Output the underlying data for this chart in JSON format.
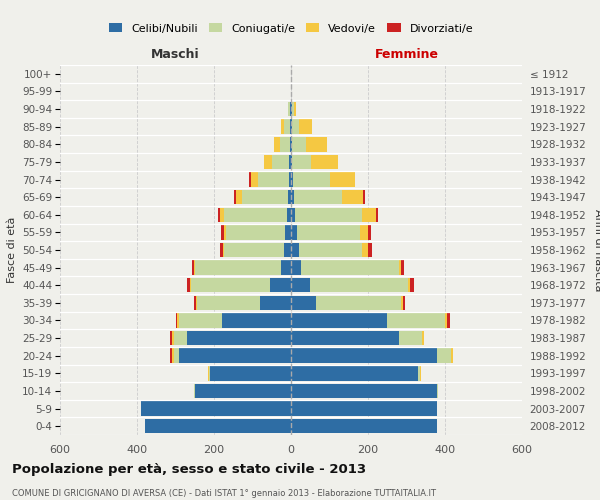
{
  "age_groups": [
    "0-4",
    "5-9",
    "10-14",
    "15-19",
    "20-24",
    "25-29",
    "30-34",
    "35-39",
    "40-44",
    "45-49",
    "50-54",
    "55-59",
    "60-64",
    "65-69",
    "70-74",
    "75-79",
    "80-84",
    "85-89",
    "90-94",
    "95-99",
    "100+"
  ],
  "birth_years": [
    "2008-2012",
    "2003-2007",
    "1998-2002",
    "1993-1997",
    "1988-1992",
    "1983-1987",
    "1978-1982",
    "1973-1977",
    "1968-1972",
    "1963-1967",
    "1958-1962",
    "1953-1957",
    "1948-1952",
    "1943-1947",
    "1938-1942",
    "1933-1937",
    "1928-1932",
    "1923-1927",
    "1918-1922",
    "1913-1917",
    "≤ 1912"
  ],
  "males": {
    "celibi": [
      380,
      390,
      250,
      210,
      290,
      270,
      180,
      80,
      55,
      25,
      18,
      15,
      10,
      8,
      5,
      4,
      3,
      2,
      2,
      0,
      0
    ],
    "coniugati": [
      0,
      0,
      2,
      4,
      15,
      35,
      110,
      165,
      205,
      225,
      155,
      155,
      165,
      120,
      80,
      45,
      25,
      15,
      5,
      0,
      0
    ],
    "vedovi": [
      0,
      0,
      0,
      2,
      5,
      5,
      5,
      2,
      2,
      2,
      3,
      5,
      10,
      15,
      20,
      20,
      15,
      8,
      2,
      0,
      0
    ],
    "divorziati": [
      0,
      0,
      0,
      0,
      5,
      5,
      5,
      5,
      8,
      5,
      8,
      8,
      5,
      5,
      5,
      0,
      0,
      0,
      0,
      0,
      0
    ]
  },
  "females": {
    "nubili": [
      380,
      380,
      380,
      330,
      380,
      280,
      250,
      65,
      50,
      25,
      20,
      15,
      10,
      8,
      5,
      3,
      3,
      2,
      2,
      0,
      0
    ],
    "coniugate": [
      0,
      0,
      2,
      5,
      35,
      60,
      150,
      220,
      255,
      255,
      165,
      165,
      175,
      125,
      95,
      50,
      35,
      18,
      5,
      0,
      0
    ],
    "vedove": [
      0,
      0,
      0,
      2,
      5,
      5,
      5,
      5,
      5,
      5,
      15,
      20,
      35,
      55,
      65,
      70,
      55,
      35,
      5,
      0,
      0
    ],
    "divorziate": [
      0,
      0,
      0,
      0,
      0,
      0,
      8,
      5,
      10,
      8,
      10,
      8,
      5,
      5,
      0,
      0,
      0,
      0,
      0,
      0,
      0
    ]
  },
  "colors": {
    "celibi": "#2e6da4",
    "coniugati": "#c5d8a0",
    "vedovi": "#f5c842",
    "divorziati": "#cc2222"
  },
  "title": "Popolazione per età, sesso e stato civile - 2013",
  "subtitle": "COMUNE DI GRICIGNANO DI AVERSA (CE) - Dati ISTAT 1° gennaio 2013 - Elaborazione TUTTAITALIA.IT",
  "ylabel_left": "Fasce di età",
  "ylabel_right": "Anni di nascita",
  "xlabel_left": "Maschi",
  "xlabel_right": "Femmine",
  "xlim": 600,
  "bg_color": "#f0f0eb",
  "grid_color": "#cccccc"
}
